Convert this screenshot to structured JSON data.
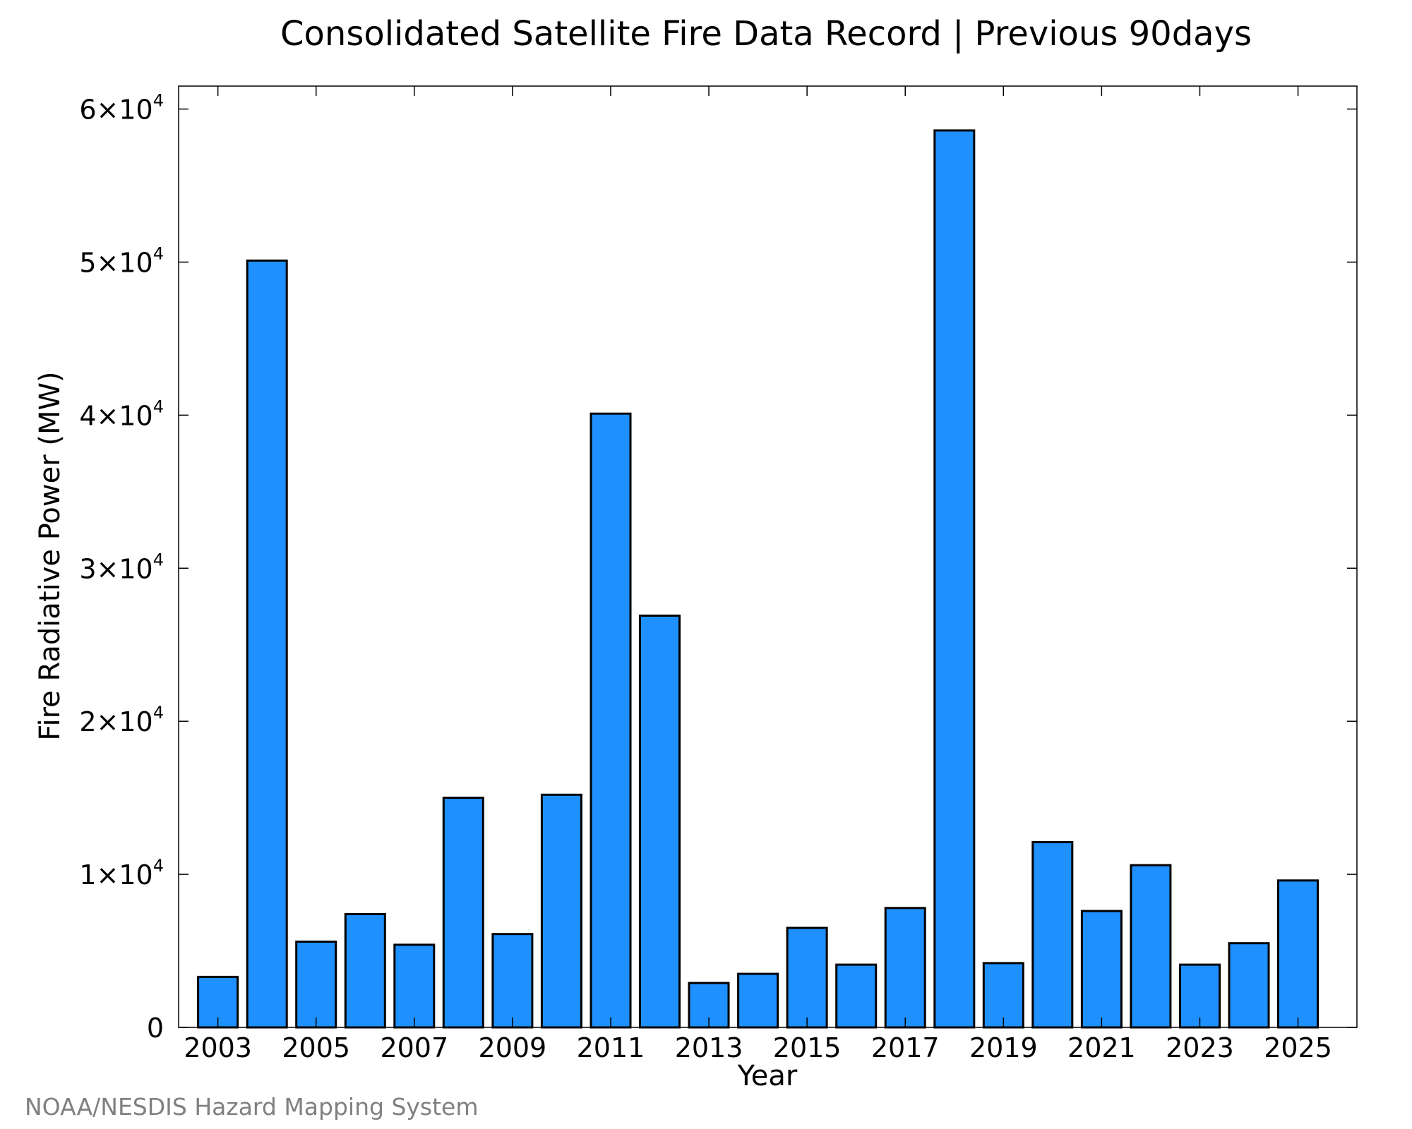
{
  "chart_data": {
    "type": "bar",
    "title": "Consolidated Satellite Fire Data Record | Previous 90days",
    "xlabel": "Year",
    "ylabel": "Fire Radiative Power (MW)",
    "credit": "NOAA/NESDIS Hazard Mapping System",
    "categories": [
      2003,
      2004,
      2005,
      2006,
      2007,
      2008,
      2009,
      2010,
      2011,
      2012,
      2013,
      2014,
      2015,
      2016,
      2017,
      2018,
      2019,
      2020,
      2021,
      2022,
      2023,
      2024,
      2025
    ],
    "values": [
      3300,
      50100,
      5600,
      7400,
      5400,
      15000,
      6100,
      15200,
      40100,
      26900,
      2900,
      3500,
      6500,
      4100,
      7800,
      58600,
      4200,
      12100,
      7600,
      10600,
      4100,
      5500,
      9600
    ],
    "x_tick_labels": [
      "2003",
      "2005",
      "2007",
      "2009",
      "2011",
      "2013",
      "2015",
      "2017",
      "2019",
      "2021",
      "2023",
      "2025"
    ],
    "x_tick_values": [
      2003,
      2005,
      2007,
      2009,
      2011,
      2013,
      2015,
      2017,
      2019,
      2021,
      2023,
      2025
    ],
    "y_ticks": [
      {
        "value": 0,
        "mantissa": "0",
        "exponent": ""
      },
      {
        "value": 10000,
        "mantissa": "1×10",
        "exponent": "4"
      },
      {
        "value": 20000,
        "mantissa": "2×10",
        "exponent": "4"
      },
      {
        "value": 30000,
        "mantissa": "3×10",
        "exponent": "4"
      },
      {
        "value": 40000,
        "mantissa": "4×10",
        "exponent": "4"
      },
      {
        "value": 50000,
        "mantissa": "5×10",
        "exponent": "4"
      },
      {
        "value": 60000,
        "mantissa": "6×10",
        "exponent": "4"
      }
    ],
    "xlim": [
      2002.2,
      2026.2
    ],
    "ylim": [
      0,
      61500
    ],
    "grid": false,
    "bar_color": "#1e90ff",
    "bar_edge_color": "#000000"
  }
}
